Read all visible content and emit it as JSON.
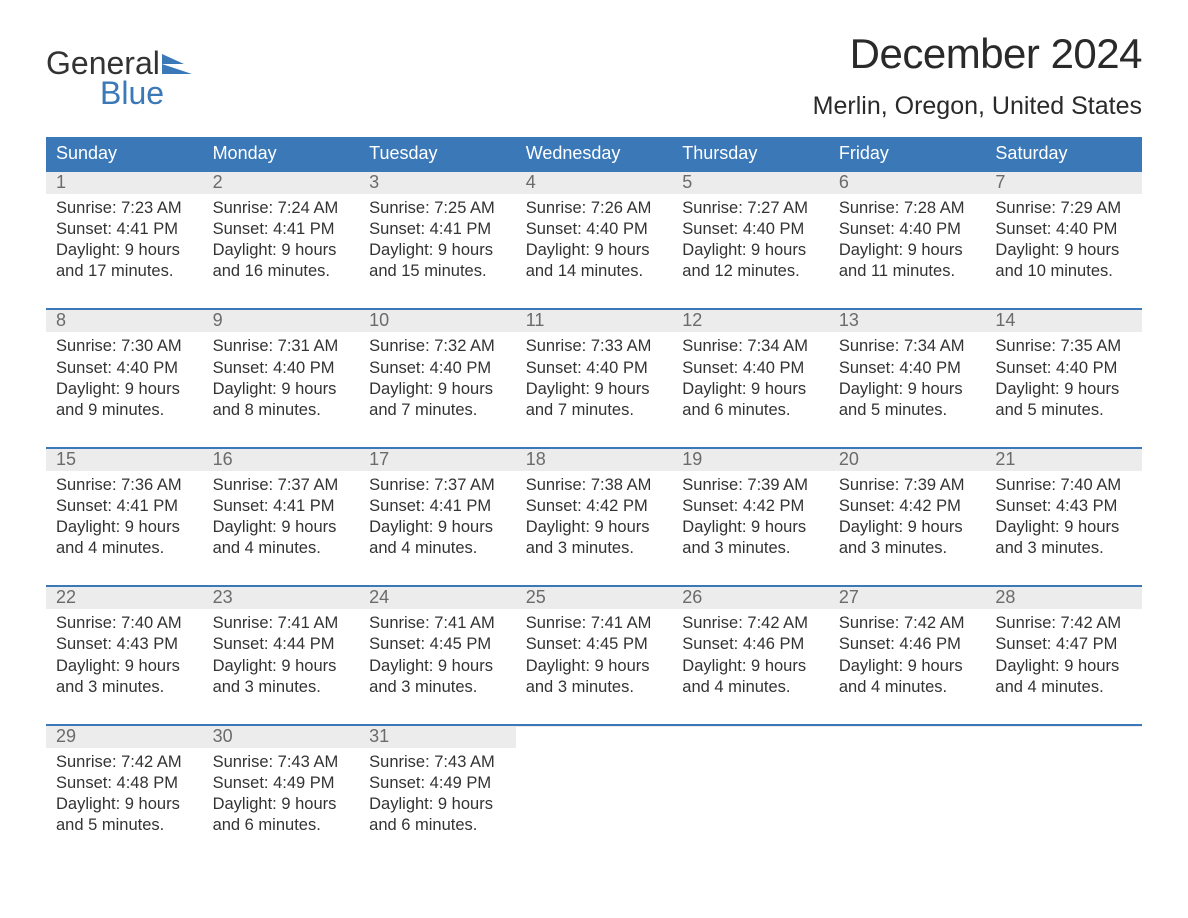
{
  "brand": {
    "word1": "General",
    "word2": "Blue",
    "mark_color": "#3b78b8"
  },
  "title": "December 2024",
  "location": "Merlin, Oregon, United States",
  "colors": {
    "header_bg": "#3b78b8",
    "header_text": "#ffffff",
    "daynum_bg": "#ececec",
    "daynum_text": "#6b6b6b",
    "body_text": "#333333",
    "rule": "#3b78b8",
    "page_bg": "#ffffff"
  },
  "typography": {
    "title_fontsize": 42,
    "location_fontsize": 25,
    "header_fontsize": 18,
    "daynum_fontsize": 18,
    "body_fontsize": 16.5,
    "logo_fontsize": 32
  },
  "layout": {
    "columns": 7,
    "weeks": 5
  },
  "day_headers": [
    "Sunday",
    "Monday",
    "Tuesday",
    "Wednesday",
    "Thursday",
    "Friday",
    "Saturday"
  ],
  "weeks": [
    [
      {
        "n": "1",
        "sunrise": "Sunrise: 7:23 AM",
        "sunset": "Sunset: 4:41 PM",
        "dl1": "Daylight: 9 hours",
        "dl2": "and 17 minutes."
      },
      {
        "n": "2",
        "sunrise": "Sunrise: 7:24 AM",
        "sunset": "Sunset: 4:41 PM",
        "dl1": "Daylight: 9 hours",
        "dl2": "and 16 minutes."
      },
      {
        "n": "3",
        "sunrise": "Sunrise: 7:25 AM",
        "sunset": "Sunset: 4:41 PM",
        "dl1": "Daylight: 9 hours",
        "dl2": "and 15 minutes."
      },
      {
        "n": "4",
        "sunrise": "Sunrise: 7:26 AM",
        "sunset": "Sunset: 4:40 PM",
        "dl1": "Daylight: 9 hours",
        "dl2": "and 14 minutes."
      },
      {
        "n": "5",
        "sunrise": "Sunrise: 7:27 AM",
        "sunset": "Sunset: 4:40 PM",
        "dl1": "Daylight: 9 hours",
        "dl2": "and 12 minutes."
      },
      {
        "n": "6",
        "sunrise": "Sunrise: 7:28 AM",
        "sunset": "Sunset: 4:40 PM",
        "dl1": "Daylight: 9 hours",
        "dl2": "and 11 minutes."
      },
      {
        "n": "7",
        "sunrise": "Sunrise: 7:29 AM",
        "sunset": "Sunset: 4:40 PM",
        "dl1": "Daylight: 9 hours",
        "dl2": "and 10 minutes."
      }
    ],
    [
      {
        "n": "8",
        "sunrise": "Sunrise: 7:30 AM",
        "sunset": "Sunset: 4:40 PM",
        "dl1": "Daylight: 9 hours",
        "dl2": "and 9 minutes."
      },
      {
        "n": "9",
        "sunrise": "Sunrise: 7:31 AM",
        "sunset": "Sunset: 4:40 PM",
        "dl1": "Daylight: 9 hours",
        "dl2": "and 8 minutes."
      },
      {
        "n": "10",
        "sunrise": "Sunrise: 7:32 AM",
        "sunset": "Sunset: 4:40 PM",
        "dl1": "Daylight: 9 hours",
        "dl2": "and 7 minutes."
      },
      {
        "n": "11",
        "sunrise": "Sunrise: 7:33 AM",
        "sunset": "Sunset: 4:40 PM",
        "dl1": "Daylight: 9 hours",
        "dl2": "and 7 minutes."
      },
      {
        "n": "12",
        "sunrise": "Sunrise: 7:34 AM",
        "sunset": "Sunset: 4:40 PM",
        "dl1": "Daylight: 9 hours",
        "dl2": "and 6 minutes."
      },
      {
        "n": "13",
        "sunrise": "Sunrise: 7:34 AM",
        "sunset": "Sunset: 4:40 PM",
        "dl1": "Daylight: 9 hours",
        "dl2": "and 5 minutes."
      },
      {
        "n": "14",
        "sunrise": "Sunrise: 7:35 AM",
        "sunset": "Sunset: 4:40 PM",
        "dl1": "Daylight: 9 hours",
        "dl2": "and 5 minutes."
      }
    ],
    [
      {
        "n": "15",
        "sunrise": "Sunrise: 7:36 AM",
        "sunset": "Sunset: 4:41 PM",
        "dl1": "Daylight: 9 hours",
        "dl2": "and 4 minutes."
      },
      {
        "n": "16",
        "sunrise": "Sunrise: 7:37 AM",
        "sunset": "Sunset: 4:41 PM",
        "dl1": "Daylight: 9 hours",
        "dl2": "and 4 minutes."
      },
      {
        "n": "17",
        "sunrise": "Sunrise: 7:37 AM",
        "sunset": "Sunset: 4:41 PM",
        "dl1": "Daylight: 9 hours",
        "dl2": "and 4 minutes."
      },
      {
        "n": "18",
        "sunrise": "Sunrise: 7:38 AM",
        "sunset": "Sunset: 4:42 PM",
        "dl1": "Daylight: 9 hours",
        "dl2": "and 3 minutes."
      },
      {
        "n": "19",
        "sunrise": "Sunrise: 7:39 AM",
        "sunset": "Sunset: 4:42 PM",
        "dl1": "Daylight: 9 hours",
        "dl2": "and 3 minutes."
      },
      {
        "n": "20",
        "sunrise": "Sunrise: 7:39 AM",
        "sunset": "Sunset: 4:42 PM",
        "dl1": "Daylight: 9 hours",
        "dl2": "and 3 minutes."
      },
      {
        "n": "21",
        "sunrise": "Sunrise: 7:40 AM",
        "sunset": "Sunset: 4:43 PM",
        "dl1": "Daylight: 9 hours",
        "dl2": "and 3 minutes."
      }
    ],
    [
      {
        "n": "22",
        "sunrise": "Sunrise: 7:40 AM",
        "sunset": "Sunset: 4:43 PM",
        "dl1": "Daylight: 9 hours",
        "dl2": "and 3 minutes."
      },
      {
        "n": "23",
        "sunrise": "Sunrise: 7:41 AM",
        "sunset": "Sunset: 4:44 PM",
        "dl1": "Daylight: 9 hours",
        "dl2": "and 3 minutes."
      },
      {
        "n": "24",
        "sunrise": "Sunrise: 7:41 AM",
        "sunset": "Sunset: 4:45 PM",
        "dl1": "Daylight: 9 hours",
        "dl2": "and 3 minutes."
      },
      {
        "n": "25",
        "sunrise": "Sunrise: 7:41 AM",
        "sunset": "Sunset: 4:45 PM",
        "dl1": "Daylight: 9 hours",
        "dl2": "and 3 minutes."
      },
      {
        "n": "26",
        "sunrise": "Sunrise: 7:42 AM",
        "sunset": "Sunset: 4:46 PM",
        "dl1": "Daylight: 9 hours",
        "dl2": "and 4 minutes."
      },
      {
        "n": "27",
        "sunrise": "Sunrise: 7:42 AM",
        "sunset": "Sunset: 4:46 PM",
        "dl1": "Daylight: 9 hours",
        "dl2": "and 4 minutes."
      },
      {
        "n": "28",
        "sunrise": "Sunrise: 7:42 AM",
        "sunset": "Sunset: 4:47 PM",
        "dl1": "Daylight: 9 hours",
        "dl2": "and 4 minutes."
      }
    ],
    [
      {
        "n": "29",
        "sunrise": "Sunrise: 7:42 AM",
        "sunset": "Sunset: 4:48 PM",
        "dl1": "Daylight: 9 hours",
        "dl2": "and 5 minutes."
      },
      {
        "n": "30",
        "sunrise": "Sunrise: 7:43 AM",
        "sunset": "Sunset: 4:49 PM",
        "dl1": "Daylight: 9 hours",
        "dl2": "and 6 minutes."
      },
      {
        "n": "31",
        "sunrise": "Sunrise: 7:43 AM",
        "sunset": "Sunset: 4:49 PM",
        "dl1": "Daylight: 9 hours",
        "dl2": "and 6 minutes."
      },
      {
        "empty": true
      },
      {
        "empty": true
      },
      {
        "empty": true
      },
      {
        "empty": true
      }
    ]
  ]
}
